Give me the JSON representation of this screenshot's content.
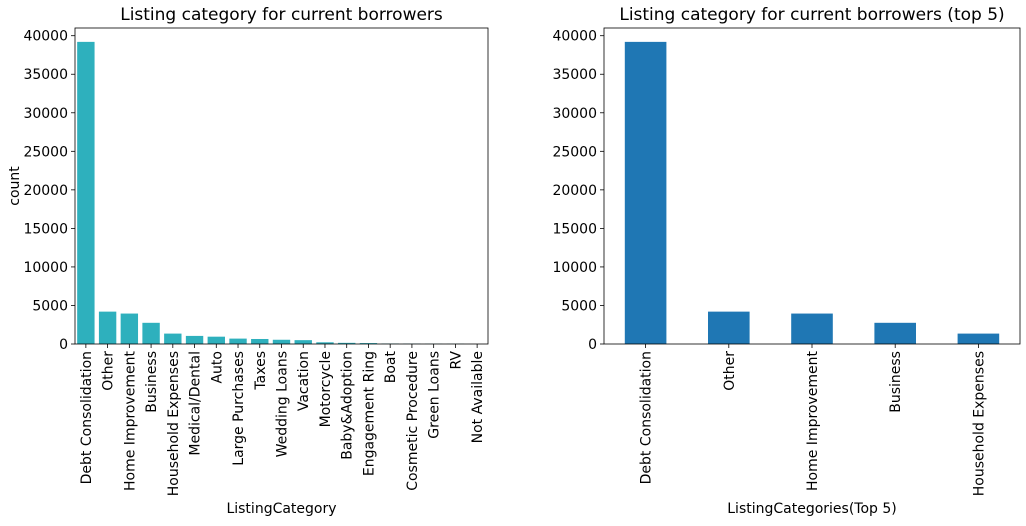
{
  "chart_data": [
    {
      "type": "bar",
      "title": "Listing category for current borrowers",
      "xlabel": "ListingCategory",
      "ylabel": "count",
      "ylim": [
        0,
        41000
      ],
      "yticks": [
        0,
        5000,
        10000,
        15000,
        20000,
        25000,
        30000,
        35000,
        40000
      ],
      "bar_color": "#2eb0bd",
      "grid": false,
      "categories": [
        "Debt Consolidation",
        "Other",
        "Home Improvement",
        "Business",
        "Household Expenses",
        "Medical/Dental",
        "Auto",
        "Large Purchases",
        "Taxes",
        "Wedding Loans",
        "Vacation",
        "Motorcycle",
        "Baby&Adoption",
        "Engagement Ring",
        "Boat",
        "Cosmetic Procedure",
        "Green Loans",
        "RV",
        "Not Available"
      ],
      "values": [
        39200,
        4200,
        3950,
        2750,
        1350,
        1050,
        950,
        700,
        650,
        550,
        500,
        220,
        150,
        120,
        60,
        40,
        30,
        25,
        5
      ]
    },
    {
      "type": "bar",
      "title": "Listing category for current borrowers (top 5)",
      "xlabel": "ListingCategories(Top 5)",
      "ylabel": "",
      "ylim": [
        0,
        41000
      ],
      "yticks": [
        0,
        5000,
        10000,
        15000,
        20000,
        25000,
        30000,
        35000,
        40000
      ],
      "bar_color": "#1f77b4",
      "grid": false,
      "categories": [
        "Debt Consolidation",
        "Other",
        "Home Improvement",
        "Business",
        "Household Expenses"
      ],
      "values": [
        39200,
        4200,
        3950,
        2750,
        1350
      ]
    }
  ]
}
